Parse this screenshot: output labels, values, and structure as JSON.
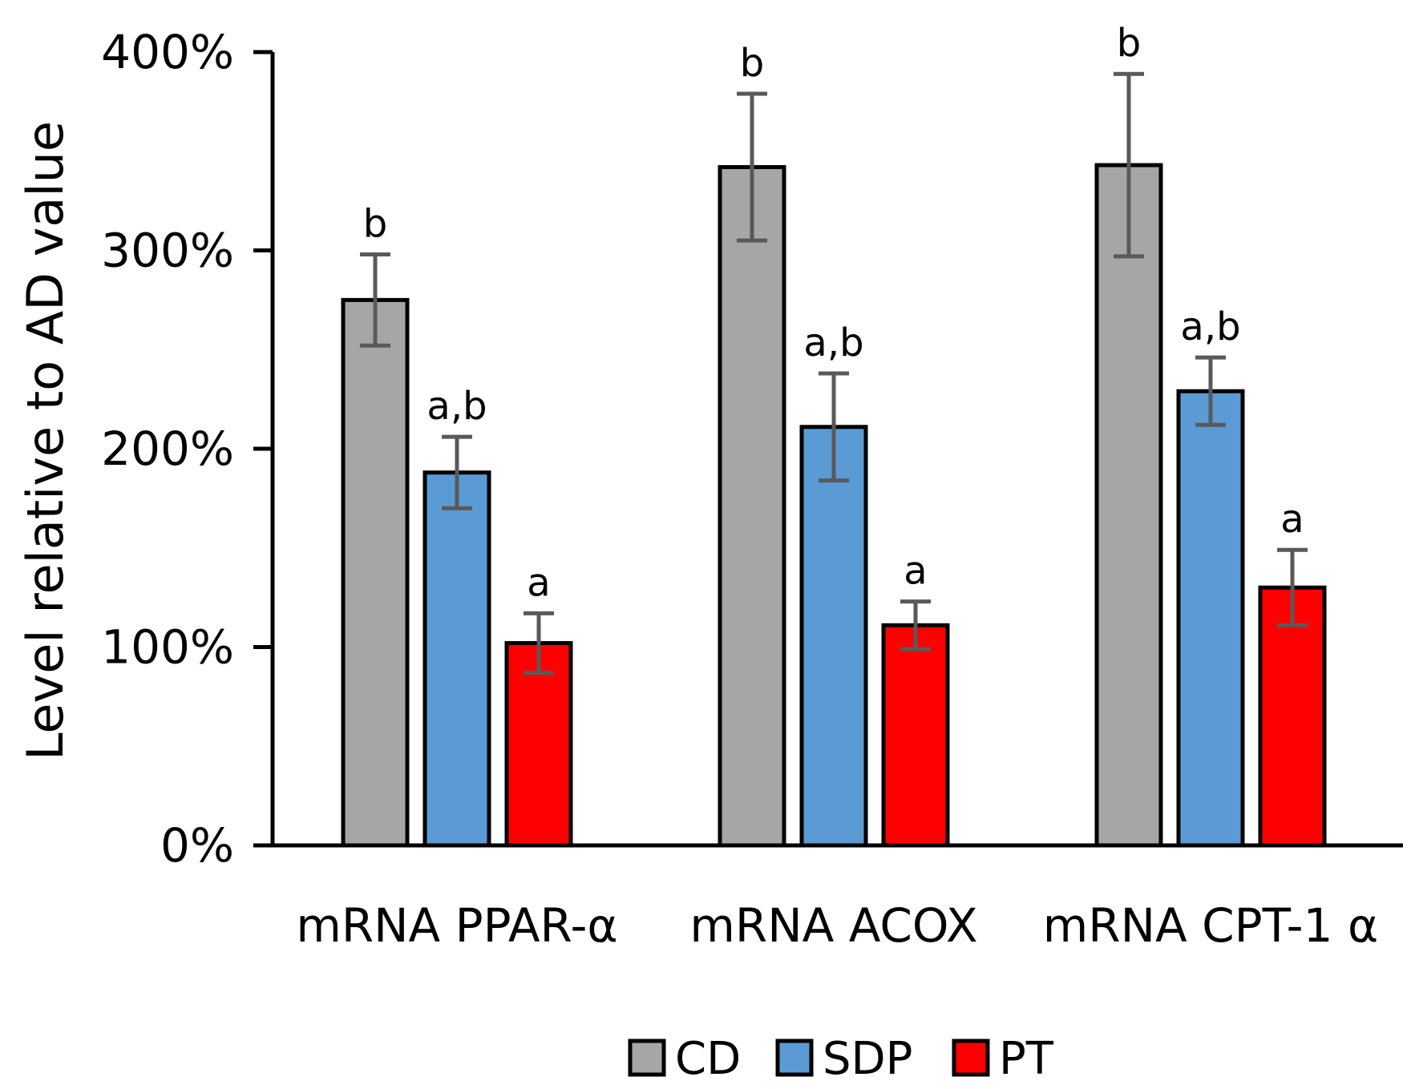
{
  "chart_data": {
    "type": "bar",
    "ylabel": "Level relative to AD value",
    "categories": [
      "mRNA PPAR-α",
      "mRNA ACOX",
      "mRNA CPT-1 α"
    ],
    "y_ticks": [
      "0%",
      "100%",
      "200%",
      "300%",
      "400%"
    ],
    "ylim": [
      0,
      400
    ],
    "unit": "%",
    "legend_position": "bottom-center",
    "series": [
      {
        "name": "CD",
        "color": "#a6a6a6",
        "values": [
          275,
          342,
          343
        ],
        "errors": [
          23,
          37,
          46
        ],
        "labels": [
          "b",
          "b",
          "b"
        ]
      },
      {
        "name": "SDP",
        "color": "#5b9bd5",
        "values": [
          188,
          211,
          229
        ],
        "errors": [
          18,
          27,
          17
        ],
        "labels": [
          "a,b",
          "a,b",
          "a,b"
        ]
      },
      {
        "name": "PT",
        "color": "#ff0000",
        "values": [
          102,
          111,
          130
        ],
        "errors": [
          15,
          12,
          19
        ],
        "labels": [
          "a",
          "a",
          "a"
        ]
      }
    ]
  }
}
